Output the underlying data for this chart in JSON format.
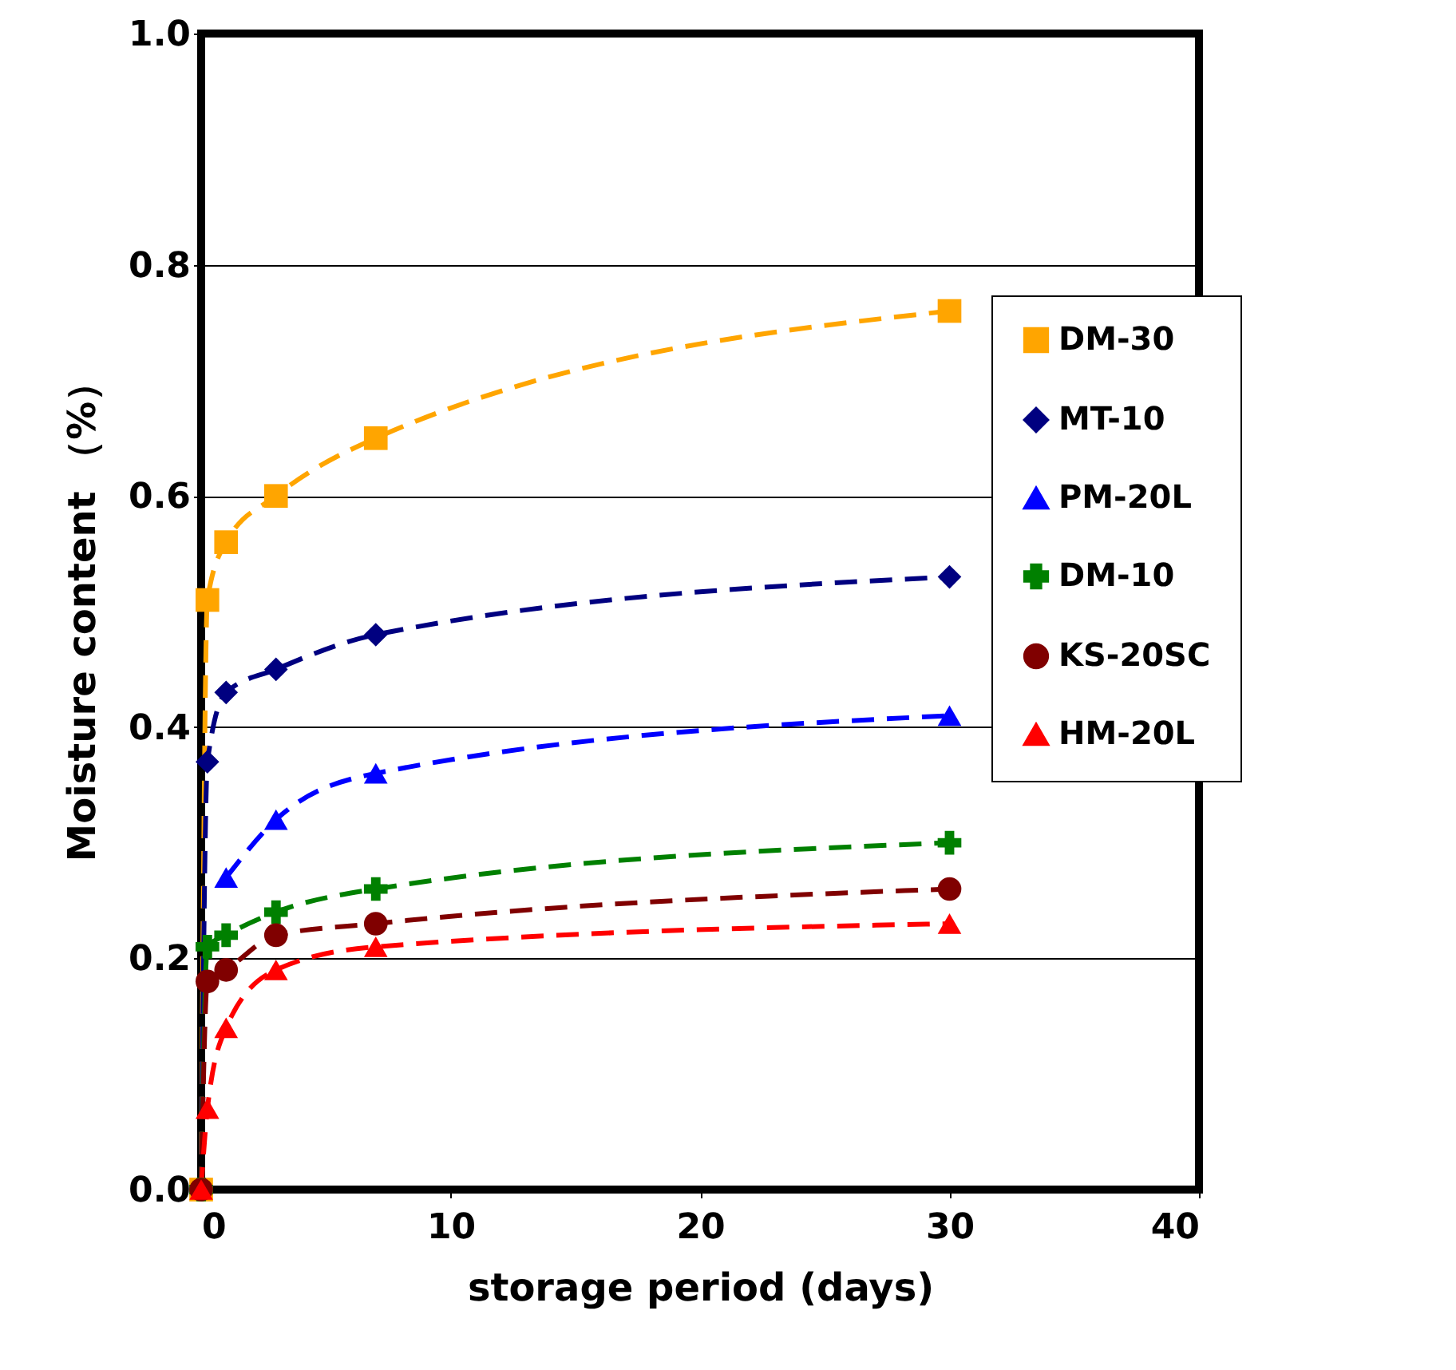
{
  "chart_data": {
    "type": "line",
    "xlabel": "storage period (days)",
    "ylabel": "Moisture content （%）",
    "xlim": [
      0,
      40
    ],
    "xticks": [
      0,
      10,
      20,
      30,
      40
    ],
    "ylim": [
      0,
      1.0
    ],
    "yticks": [
      {
        "value": 0,
        "label": "0.0"
      },
      0.2,
      0.4,
      0.6,
      0.8,
      {
        "value": 1,
        "label": "1.0"
      }
    ],
    "grid": "y",
    "legend": "right",
    "line_style": "dashed",
    "series": [
      {
        "name": "DM-30",
        "color": "#ffa500",
        "marker": "square",
        "x": [
          0,
          0.25,
          1,
          3,
          7,
          30
        ],
        "values": [
          0,
          0.51,
          0.56,
          0.6,
          0.65,
          0.76
        ]
      },
      {
        "name": "MT-10",
        "color": "#000080",
        "marker": "diamond",
        "x": [
          0,
          0.25,
          1,
          3,
          7,
          30
        ],
        "values": [
          0,
          0.37,
          0.43,
          0.45,
          0.48,
          0.53
        ]
      },
      {
        "name": "PM-20L",
        "color": "#0000ff",
        "marker": "triangle",
        "x": [
          1,
          3,
          7,
          30
        ],
        "values": [
          0.27,
          0.32,
          0.36,
          0.41
        ]
      },
      {
        "name": "DM-10",
        "color": "#008000",
        "marker": "cross",
        "x": [
          0,
          0.25,
          1,
          3,
          7,
          30
        ],
        "values": [
          0,
          0.21,
          0.22,
          0.24,
          0.26,
          0.3
        ]
      },
      {
        "name": "KS-20SC",
        "color": "#800000",
        "marker": "circle",
        "x": [
          0,
          0.25,
          1,
          3,
          7,
          30
        ],
        "values": [
          0,
          0.18,
          0.19,
          0.22,
          0.23,
          0.26
        ]
      },
      {
        "name": "HM-20L",
        "color": "#ff0000",
        "marker": "triangle",
        "x": [
          0,
          0.25,
          1,
          3,
          7,
          30
        ],
        "values": [
          0,
          0.07,
          0.14,
          0.19,
          0.21,
          0.23
        ]
      }
    ]
  }
}
